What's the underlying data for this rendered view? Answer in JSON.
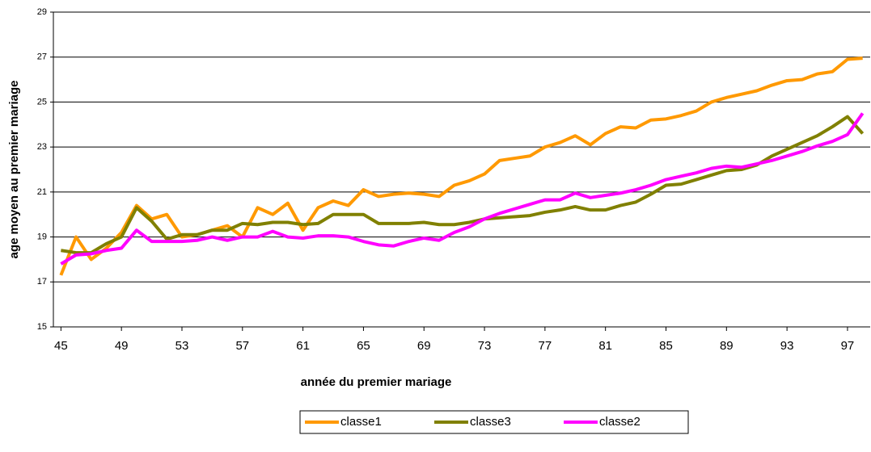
{
  "chart_data": {
    "type": "line",
    "x_label": "année du premier  mariage",
    "y_label": "age moyen au premier mariage",
    "x": [
      45,
      46,
      47,
      48,
      49,
      50,
      51,
      52,
      53,
      54,
      55,
      56,
      57,
      58,
      59,
      60,
      61,
      62,
      63,
      64,
      65,
      66,
      67,
      68,
      69,
      70,
      71,
      72,
      73,
      74,
      75,
      76,
      77,
      78,
      79,
      80,
      81,
      82,
      83,
      84,
      85,
      86,
      87,
      88,
      89,
      90,
      91,
      92,
      93,
      94,
      95,
      96,
      97,
      98
    ],
    "xlim": [
      44.5,
      98.5
    ],
    "xticks": [
      45,
      49,
      53,
      57,
      61,
      65,
      69,
      73,
      77,
      81,
      85,
      89,
      93,
      97
    ],
    "ylim": [
      15,
      29
    ],
    "yticks": [
      15,
      17,
      19,
      21,
      23,
      25,
      27,
      29
    ],
    "grid": true,
    "legend": "bottom",
    "series": [
      {
        "name": "classe1",
        "color": "#ff9900",
        "values": [
          17.3,
          19.0,
          18.0,
          18.5,
          19.2,
          20.4,
          19.8,
          20.0,
          19.0,
          19.1,
          19.3,
          19.5,
          19.0,
          20.3,
          20.0,
          20.5,
          19.3,
          20.3,
          20.6,
          20.4,
          21.1,
          20.8,
          20.9,
          20.95,
          20.9,
          20.8,
          21.3,
          21.5,
          21.8,
          22.4,
          22.5,
          22.6,
          23.0,
          23.2,
          23.5,
          23.1,
          23.6,
          23.9,
          23.85,
          24.2,
          24.25,
          24.4,
          24.6,
          25.0,
          25.2,
          25.35,
          25.5,
          25.75,
          25.95,
          26.0,
          26.25,
          26.35,
          26.9,
          26.95
        ]
      },
      {
        "name": "classe3",
        "color": "#808000",
        "values": [
          18.4,
          18.3,
          18.3,
          18.7,
          19.0,
          20.3,
          19.7,
          18.9,
          19.1,
          19.1,
          19.3,
          19.3,
          19.6,
          19.55,
          19.65,
          19.65,
          19.55,
          19.6,
          20.0,
          20.0,
          20.0,
          19.6,
          19.6,
          19.6,
          19.65,
          19.55,
          19.55,
          19.65,
          19.8,
          19.85,
          19.9,
          19.95,
          20.1,
          20.2,
          20.35,
          20.2,
          20.2,
          20.4,
          20.55,
          20.9,
          21.3,
          21.35,
          21.55,
          21.75,
          21.95,
          22.0,
          22.2,
          22.6,
          22.9,
          23.2,
          23.5,
          23.9,
          24.35,
          23.6
        ]
      },
      {
        "name": "classe2",
        "color": "#ff00ff",
        "values": [
          17.8,
          18.2,
          18.25,
          18.4,
          18.5,
          19.3,
          18.8,
          18.8,
          18.8,
          18.85,
          19.0,
          18.85,
          19.0,
          19.0,
          19.25,
          19.0,
          18.95,
          19.05,
          19.05,
          19.0,
          18.8,
          18.65,
          18.6,
          18.8,
          18.95,
          18.85,
          19.2,
          19.45,
          19.8,
          20.05,
          20.25,
          20.45,
          20.65,
          20.65,
          20.95,
          20.75,
          20.85,
          20.95,
          21.1,
          21.3,
          21.55,
          21.7,
          21.85,
          22.05,
          22.15,
          22.1,
          22.25,
          22.4,
          22.6,
          22.8,
          23.05,
          23.25,
          23.55,
          24.5
        ]
      }
    ]
  }
}
